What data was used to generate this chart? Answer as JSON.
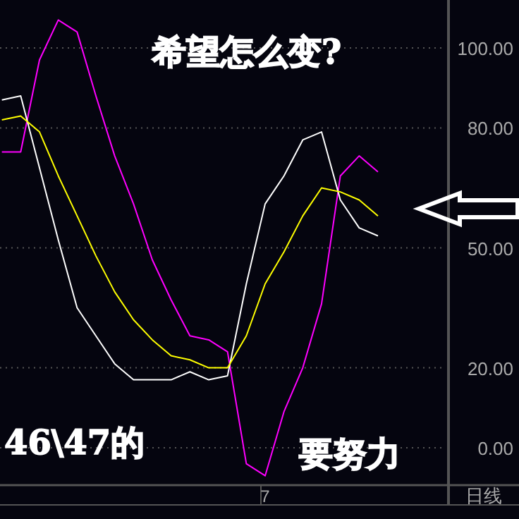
{
  "chart_data": {
    "type": "line",
    "title": "希望怎么变?",
    "categories": [
      null,
      null,
      null,
      null,
      null,
      null,
      null,
      null,
      null,
      null,
      null,
      null,
      null,
      null,
      "7",
      null,
      null,
      null,
      null,
      null,
      null
    ],
    "series": [
      {
        "color": "#ff00ff",
        "values": [
          74,
          74,
          97,
          107,
          104,
          88,
          73,
          61,
          47,
          37,
          28,
          27,
          24,
          -4,
          -7,
          9,
          20,
          36,
          68,
          73,
          69
        ]
      },
      {
        "color": "#ffffff",
        "values": [
          87,
          88,
          70,
          52,
          35,
          28,
          21,
          17,
          17,
          17,
          19,
          17,
          18,
          41,
          61,
          68,
          77,
          79,
          62,
          55,
          53
        ]
      },
      {
        "color": "#ffff00",
        "values": [
          82,
          83,
          79,
          68,
          58,
          48,
          39,
          32,
          27,
          23,
          22,
          20,
          20,
          28,
          41,
          49,
          58,
          65,
          64,
          62,
          58
        ]
      }
    ],
    "ylim": [
      -9,
      112
    ],
    "yticks": [
      {
        "value": 0,
        "label": "0.00"
      },
      {
        "value": 20,
        "label": "20.00"
      },
      {
        "value": 50,
        "label": "50.00"
      },
      {
        "value": 80,
        "label": "80.00"
      },
      {
        "value": 100,
        "label": "100.00"
      }
    ],
    "grid": "y",
    "annotations": [
      "46\\47的",
      "要努力",
      "日线"
    ]
  }
}
